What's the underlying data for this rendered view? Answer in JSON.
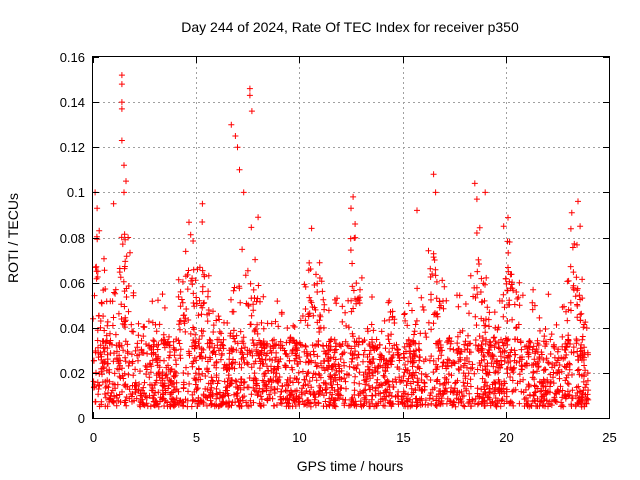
{
  "chart_data": {
    "type": "scatter",
    "title": "Day 244 of 2024, Rate Of TEC Index for receiver p350",
    "xlabel": "GPS time / hours",
    "ylabel": "ROTI / TECUs",
    "xlim": [
      0,
      25
    ],
    "ylim": [
      0,
      0.16
    ],
    "xticks": [
      0,
      5,
      10,
      15,
      20,
      25
    ],
    "xtick_labels": [
      "0",
      "5",
      "10",
      "15",
      "20",
      "25"
    ],
    "yticks": [
      0,
      0.02,
      0.04,
      0.06,
      0.08,
      0.1,
      0.12,
      0.14,
      0.16
    ],
    "ytick_labels": [
      "0",
      "0.02",
      "0.04",
      "0.06",
      "0.08",
      "0.1",
      "0.12",
      "0.14",
      "0.16"
    ],
    "grid": true,
    "marker": "+",
    "color": "#ff0000",
    "series": [
      {
        "name": "ROTI",
        "x_range_hours": [
          0,
          24
        ],
        "baseline_band": [
          0.005,
          0.035
        ],
        "notable_points": [
          {
            "x": 0.1,
            "y": 0.1
          },
          {
            "x": 0.2,
            "y": 0.093
          },
          {
            "x": 0.3,
            "y": 0.083
          },
          {
            "x": 1.0,
            "y": 0.095
          },
          {
            "x": 1.4,
            "y": 0.152
          },
          {
            "x": 1.4,
            "y": 0.148
          },
          {
            "x": 1.4,
            "y": 0.14
          },
          {
            "x": 1.4,
            "y": 0.137
          },
          {
            "x": 1.4,
            "y": 0.123
          },
          {
            "x": 1.5,
            "y": 0.112
          },
          {
            "x": 1.6,
            "y": 0.105
          },
          {
            "x": 1.5,
            "y": 0.1
          },
          {
            "x": 1.7,
            "y": 0.08
          },
          {
            "x": 5.3,
            "y": 0.095
          },
          {
            "x": 6.7,
            "y": 0.13
          },
          {
            "x": 6.9,
            "y": 0.125
          },
          {
            "x": 7.0,
            "y": 0.12
          },
          {
            "x": 7.1,
            "y": 0.11
          },
          {
            "x": 7.6,
            "y": 0.146
          },
          {
            "x": 7.6,
            "y": 0.143
          },
          {
            "x": 7.7,
            "y": 0.136
          },
          {
            "x": 7.3,
            "y": 0.1
          },
          {
            "x": 8.0,
            "y": 0.089
          },
          {
            "x": 12.6,
            "y": 0.098
          },
          {
            "x": 12.5,
            "y": 0.093
          },
          {
            "x": 12.7,
            "y": 0.086
          },
          {
            "x": 15.7,
            "y": 0.092
          },
          {
            "x": 16.5,
            "y": 0.108
          },
          {
            "x": 16.6,
            "y": 0.1
          },
          {
            "x": 18.5,
            "y": 0.104
          },
          {
            "x": 18.6,
            "y": 0.097
          },
          {
            "x": 18.6,
            "y": 0.082
          },
          {
            "x": 19.0,
            "y": 0.1
          },
          {
            "x": 19.9,
            "y": 0.085
          },
          {
            "x": 23.2,
            "y": 0.091
          },
          {
            "x": 23.5,
            "y": 0.096
          },
          {
            "x": 23.6,
            "y": 0.085
          }
        ],
        "activity_peaks_hours": [
          0.2,
          1.5,
          4.6,
          5.3,
          7.1,
          7.6,
          10.7,
          12.6,
          16.5,
          18.7,
          20.2,
          23.3
        ]
      }
    ]
  }
}
